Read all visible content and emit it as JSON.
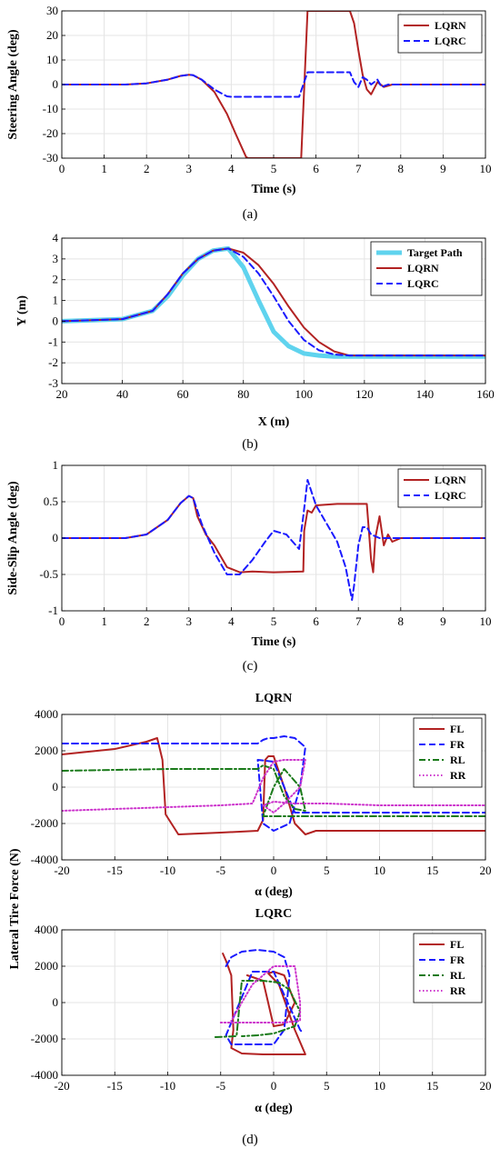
{
  "colors": {
    "lqrn": "#b22222",
    "lqrc": "#1a1aff",
    "target": "#5fd3ee",
    "fl": "#b22222",
    "fr": "#1a1aff",
    "rl": "#1a7a1a",
    "rr": "#cc33cc",
    "grid": "#e4e4e4"
  },
  "chart_data": [
    {
      "id": "a",
      "type": "line",
      "caption": "(a)",
      "title": "",
      "xlabel": "Time (s)",
      "ylabel": "Steering Angle (deg)",
      "xlim": [
        0,
        10
      ],
      "ylim": [
        -30,
        30
      ],
      "xticks": [
        0,
        1,
        2,
        3,
        4,
        5,
        6,
        7,
        8,
        9,
        10
      ],
      "yticks": [
        -30,
        -20,
        -10,
        0,
        10,
        20,
        30
      ],
      "grid": true,
      "legend_position": "top-right",
      "series": [
        {
          "name": "LQRN",
          "style": "solid",
          "color": "#b22222",
          "x": [
            0,
            1.5,
            2.0,
            2.5,
            2.8,
            3.0,
            3.1,
            3.3,
            3.6,
            3.9,
            4.1,
            4.35,
            4.4,
            5.6,
            5.65,
            5.8,
            6.8,
            6.9,
            7.0,
            7.1,
            7.2,
            7.3,
            7.45,
            7.6,
            7.8,
            8.0,
            10
          ],
          "y": [
            0,
            0,
            0.5,
            2.0,
            3.5,
            4.0,
            3.8,
            2.0,
            -3.0,
            -12.0,
            -20.0,
            -29.5,
            -30,
            -30,
            -30,
            30,
            30,
            25,
            14,
            4,
            -2,
            -4,
            1,
            -1,
            0,
            0,
            0
          ]
        },
        {
          "name": "LQRC",
          "style": "dashed",
          "color": "#1a1aff",
          "x": [
            0,
            1.5,
            2.0,
            2.5,
            2.8,
            3.0,
            3.1,
            3.3,
            3.6,
            3.9,
            4.0,
            5.6,
            5.8,
            6.8,
            6.9,
            7.0,
            7.1,
            7.2,
            7.3,
            7.45,
            7.55,
            7.7,
            8.0,
            10
          ],
          "y": [
            0,
            0,
            0.5,
            2.0,
            3.5,
            4.0,
            3.8,
            2.0,
            -2.0,
            -4.8,
            -5,
            -5,
            5,
            5,
            1,
            -1,
            3,
            2,
            0,
            2,
            -1,
            0,
            0,
            0
          ]
        }
      ]
    },
    {
      "id": "b",
      "type": "line",
      "caption": "(b)",
      "title": "",
      "xlabel": "X (m)",
      "ylabel": "Y (m)",
      "xlim": [
        20,
        160
      ],
      "ylim": [
        -3,
        4
      ],
      "xticks": [
        20,
        40,
        60,
        80,
        100,
        120,
        140,
        160
      ],
      "yticks": [
        -3,
        -2,
        -1,
        0,
        1,
        2,
        3,
        4
      ],
      "grid": true,
      "legend_position": "top-right",
      "series": [
        {
          "name": "Target Path",
          "style": "thick",
          "color": "#5fd3ee",
          "x": [
            20,
            40,
            50,
            55,
            60,
            65,
            70,
            75,
            80,
            85,
            90,
            95,
            100,
            105,
            110,
            120,
            160
          ],
          "y": [
            0,
            0.1,
            0.5,
            1.2,
            2.2,
            3.0,
            3.4,
            3.5,
            2.6,
            1.0,
            -0.5,
            -1.2,
            -1.55,
            -1.65,
            -1.7,
            -1.7,
            -1.7
          ]
        },
        {
          "name": "LQRN",
          "style": "solid",
          "color": "#b22222",
          "x": [
            20,
            40,
            50,
            55,
            60,
            65,
            70,
            75,
            80,
            85,
            90,
            95,
            100,
            105,
            110,
            115,
            160
          ],
          "y": [
            0,
            0.1,
            0.5,
            1.3,
            2.3,
            3.0,
            3.4,
            3.5,
            3.3,
            2.7,
            1.8,
            0.7,
            -0.3,
            -1.0,
            -1.45,
            -1.65,
            -1.65
          ]
        },
        {
          "name": "LQRC",
          "style": "dashed",
          "color": "#1a1aff",
          "x": [
            20,
            40,
            50,
            55,
            60,
            65,
            70,
            75,
            80,
            85,
            90,
            95,
            100,
            105,
            110,
            115,
            160
          ],
          "y": [
            0,
            0.1,
            0.5,
            1.3,
            2.3,
            3.0,
            3.4,
            3.5,
            3.1,
            2.3,
            1.2,
            0.0,
            -0.9,
            -1.4,
            -1.6,
            -1.65,
            -1.65
          ]
        }
      ]
    },
    {
      "id": "c",
      "type": "line",
      "caption": "(c)",
      "title": "",
      "xlabel": "Time (s)",
      "ylabel": "Side-Slip Angle (deg)",
      "xlim": [
        0,
        10
      ],
      "ylim": [
        -1,
        1
      ],
      "xticks": [
        0,
        1,
        2,
        3,
        4,
        5,
        6,
        7,
        8,
        9,
        10
      ],
      "yticks": [
        -1,
        -0.5,
        0,
        0.5,
        1
      ],
      "grid": true,
      "legend_position": "top-right",
      "series": [
        {
          "name": "LQRN",
          "style": "solid",
          "color": "#b22222",
          "x": [
            0,
            1.5,
            2.0,
            2.5,
            2.8,
            3.0,
            3.1,
            3.2,
            3.4,
            3.6,
            3.7,
            3.9,
            4.2,
            4.5,
            5.0,
            5.7,
            5.72,
            5.8,
            5.9,
            6.0,
            6.5,
            7.2,
            7.25,
            7.3,
            7.35,
            7.4,
            7.5,
            7.6,
            7.7,
            7.8,
            8.0,
            10
          ],
          "y": [
            0,
            0,
            0.05,
            0.25,
            0.48,
            0.58,
            0.55,
            0.3,
            0.05,
            -0.1,
            -0.2,
            -0.4,
            -0.47,
            -0.46,
            -0.47,
            -0.46,
            0.1,
            0.38,
            0.35,
            0.45,
            0.47,
            0.47,
            0.1,
            -0.3,
            -0.47,
            0.0,
            0.3,
            -0.1,
            0.05,
            -0.05,
            0,
            0
          ]
        },
        {
          "name": "LQRC",
          "style": "dashed",
          "color": "#1a1aff",
          "x": [
            0,
            1.5,
            2.0,
            2.5,
            2.8,
            3.0,
            3.1,
            3.3,
            3.6,
            3.9,
            4.2,
            4.5,
            4.8,
            5.0,
            5.3,
            5.6,
            5.7,
            5.8,
            6.0,
            6.3,
            6.5,
            6.7,
            6.85,
            6.9,
            7.0,
            7.1,
            7.2,
            7.3,
            7.5,
            7.7,
            8.0,
            10
          ],
          "y": [
            0,
            0,
            0.05,
            0.25,
            0.48,
            0.58,
            0.55,
            0.2,
            -0.2,
            -0.5,
            -0.5,
            -0.3,
            -0.05,
            0.1,
            0.05,
            -0.15,
            0.3,
            0.8,
            0.45,
            0.15,
            -0.05,
            -0.4,
            -0.85,
            -0.65,
            -0.1,
            0.15,
            0.15,
            0.05,
            0.0,
            0.0,
            0,
            0
          ]
        }
      ]
    },
    {
      "id": "d1",
      "type": "line",
      "caption": "",
      "title": "LQRN",
      "xlabel": "α (deg)",
      "ylabel": "",
      "xlim": [
        -20,
        20
      ],
      "ylim": [
        -4000,
        4000
      ],
      "xticks": [
        -20,
        -15,
        -10,
        -5,
        0,
        5,
        10,
        15,
        20
      ],
      "yticks": [
        -4000,
        -2000,
        0,
        2000,
        4000
      ],
      "grid": true,
      "legend_position": "top-right",
      "series": [
        {
          "name": "FL",
          "style": "solid",
          "color": "#b22222",
          "x": [
            -20,
            -15,
            -12,
            -11,
            -10.5,
            -10.2,
            -9,
            -5,
            -1.5,
            -1.0,
            -0.8,
            -0.5,
            0,
            1,
            2,
            3,
            4,
            10,
            20
          ],
          "y": [
            1800,
            2100,
            2500,
            2700,
            1500,
            -1500,
            -2600,
            -2500,
            -2400,
            -1800,
            1500,
            1700,
            1700,
            0,
            -2000,
            -2600,
            -2400,
            -2400,
            -2400
          ]
        },
        {
          "name": "FR",
          "style": "dashed",
          "color": "#1a1aff",
          "x": [
            -20,
            -10,
            -5,
            -1.5,
            -1.0,
            -0.5,
            0,
            1,
            2,
            3,
            2.5,
            1.5,
            0,
            -1,
            -1.5,
            0,
            2,
            5,
            10,
            20
          ],
          "y": [
            2400,
            2400,
            2400,
            2400,
            2600,
            2700,
            2700,
            2800,
            2700,
            2200,
            0,
            -2000,
            -2400,
            -2000,
            1500,
            1400,
            -1400,
            -1400,
            -1400,
            -1400
          ]
        },
        {
          "name": "RL",
          "style": "dashdot",
          "color": "#1a7a1a",
          "x": [
            -20,
            -10,
            -3,
            -1.5,
            -1.0,
            0,
            1,
            2,
            3,
            2.5,
            1,
            0,
            -1,
            0,
            2,
            5,
            20
          ],
          "y": [
            900,
            1000,
            1000,
            1000,
            1200,
            1000,
            -500,
            -1200,
            -1300,
            0,
            1000,
            0,
            -1600,
            -1600,
            -1600,
            -1600,
            -1600
          ]
        },
        {
          "name": "RR",
          "style": "dotted",
          "color": "#cc33cc",
          "x": [
            -20,
            -15,
            -10,
            -5,
            -2,
            -1,
            0,
            1,
            2,
            3,
            2.5,
            1,
            0,
            -1,
            0,
            2,
            5,
            10,
            20
          ],
          "y": [
            -1300,
            -1200,
            -1100,
            -1000,
            -900,
            500,
            1400,
            1500,
            1500,
            1500,
            0,
            -900,
            -1400,
            -1000,
            -800,
            -900,
            -900,
            -1000,
            -1000
          ]
        }
      ]
    },
    {
      "id": "d2",
      "type": "line",
      "caption": "(d)",
      "title": "LQRC",
      "xlabel": "α (deg)",
      "ylabel": "",
      "xlim": [
        -20,
        20
      ],
      "ylim": [
        -4000,
        4000
      ],
      "xticks": [
        -20,
        -15,
        -10,
        -5,
        0,
        5,
        10,
        15,
        20
      ],
      "yticks": [
        -4000,
        -2000,
        0,
        2000,
        4000
      ],
      "grid": true,
      "legend_position": "top-right",
      "series": [
        {
          "name": "FL",
          "style": "solid",
          "color": "#b22222",
          "x": [
            -4.8,
            -4.5,
            -4.0,
            -3.8,
            -4.0,
            -3.0,
            -1.0,
            1.0,
            2.5,
            3.0,
            2.0,
            0.5,
            -0.5,
            0.0,
            1.0,
            2.0,
            1.0,
            0,
            -1,
            -2.5
          ],
          "y": [
            2700,
            2300,
            1500,
            -1500,
            -2500,
            -2800,
            -2850,
            -2850,
            -2850,
            -2850,
            -1500,
            1000,
            1600,
            1700,
            1500,
            0,
            -1200,
            -1300,
            1200,
            1500
          ]
        },
        {
          "name": "FR",
          "style": "dashed",
          "color": "#1a1aff",
          "x": [
            -4.5,
            -4.0,
            -3.0,
            -1.5,
            0.0,
            1.0,
            1.5,
            1.0,
            0,
            -1.5,
            -3.0,
            -4.0,
            -4.5,
            -2.0,
            0,
            2.5,
            2.8
          ],
          "y": [
            2000,
            2500,
            2800,
            2900,
            2800,
            2500,
            1500,
            -1500,
            -2300,
            -2300,
            -2300,
            -2300,
            -1800,
            1700,
            1700,
            -1500,
            -1700
          ]
        },
        {
          "name": "RL",
          "style": "dashdot",
          "color": "#1a7a1a",
          "x": [
            -5.5,
            -3.5,
            -3.0,
            -1.0,
            0.5,
            1.5,
            2.5,
            2.0,
            0,
            -1.5,
            -3.0
          ],
          "y": [
            -1900,
            -1850,
            1200,
            1200,
            1100,
            700,
            -500,
            -1300,
            -1700,
            -1800,
            -1850
          ]
        },
        {
          "name": "RR",
          "style": "dotted",
          "color": "#cc33cc",
          "x": [
            -5.0,
            -3.0,
            -1.0,
            1.0,
            2.5,
            2.5,
            2.0,
            1.0,
            0.0,
            -1.0,
            -2.0,
            -3.0,
            -4.0
          ],
          "y": [
            -1100,
            -1100,
            -1100,
            -1100,
            -1000,
            0,
            2000,
            2000,
            2000,
            1500,
            1000,
            0,
            -1000
          ]
        }
      ]
    }
  ],
  "shared_ylabel_d": "Lateral Tire Force (N)"
}
